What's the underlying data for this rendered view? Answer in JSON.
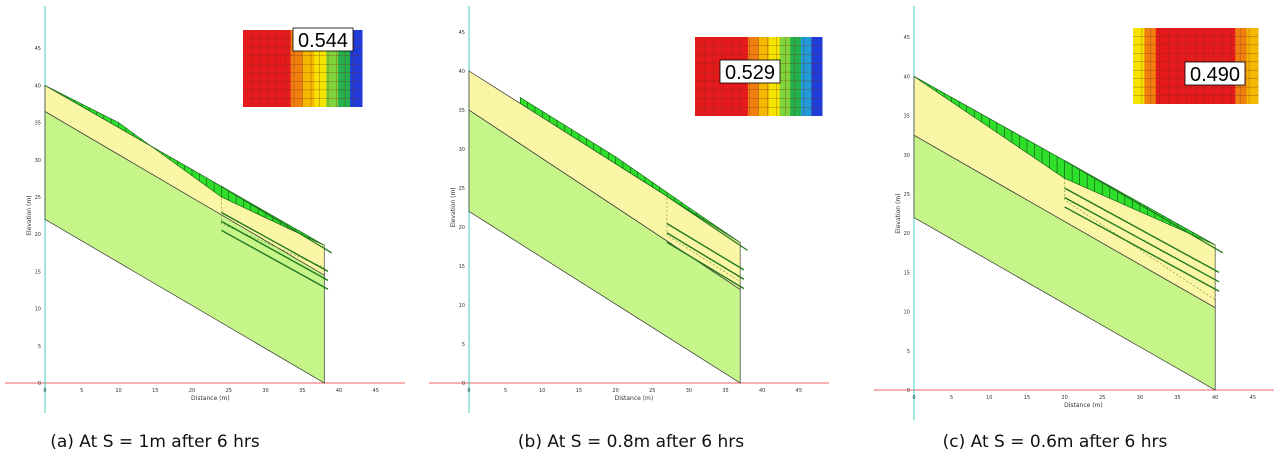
{
  "panels": [
    {
      "caption": "(a) At S = 1m after 6 hrs",
      "factor_of_safety": "0.544",
      "x_label": "Distance (m)",
      "y_label": "Elevation (m)",
      "x_ticks": [
        0,
        5,
        10,
        15,
        20,
        25,
        30,
        35,
        40,
        45
      ],
      "y_ticks": [
        0,
        5,
        10,
        15,
        20,
        25,
        30,
        35,
        40,
        45
      ]
    },
    {
      "caption": "(b) At S = 0.8m after 6 hrs",
      "factor_of_safety": "0.529",
      "x_label": "Distance (m)",
      "y_label": "Elevation (m)",
      "x_ticks": [
        0,
        5,
        10,
        15,
        20,
        25,
        30,
        35,
        40,
        45
      ],
      "y_ticks": [
        0,
        5,
        10,
        15,
        20,
        25,
        30,
        35,
        40,
        45
      ]
    },
    {
      "caption": "(c) At S = 0.6m after 6 hrs",
      "factor_of_safety": "0.490",
      "x_label": "Distance (m)",
      "y_label": "Elevation (m)",
      "x_ticks": [
        0,
        5,
        10,
        15,
        20,
        25,
        30,
        35,
        40,
        45
      ],
      "y_ticks": [
        0,
        5,
        10,
        15,
        20,
        25,
        30,
        35,
        40,
        45
      ]
    }
  ]
}
